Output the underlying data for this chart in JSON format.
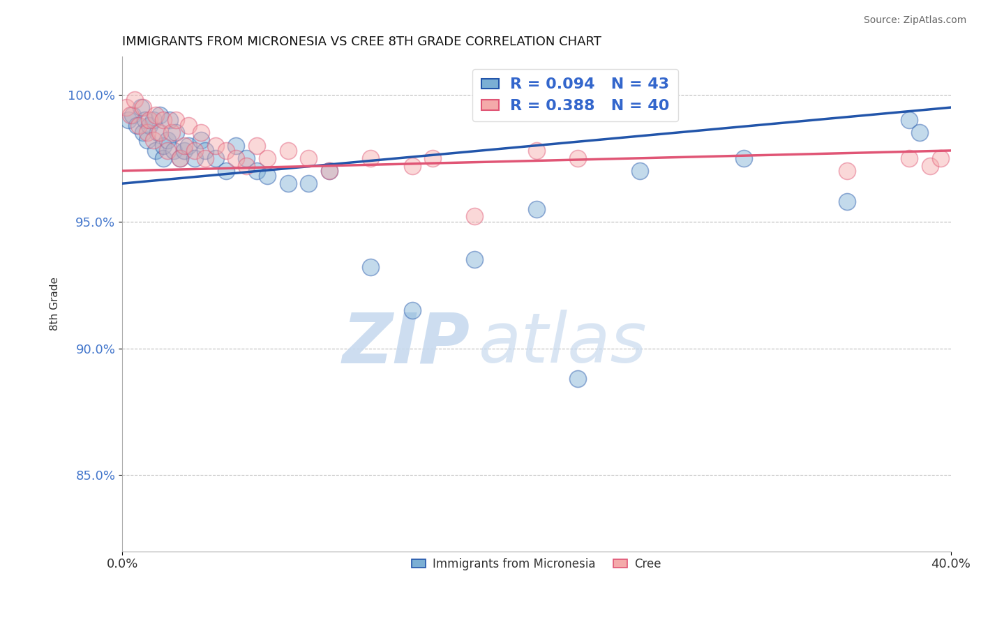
{
  "title": "IMMIGRANTS FROM MICRONESIA VS CREE 8TH GRADE CORRELATION CHART",
  "source": "Source: ZipAtlas.com",
  "ylabel": "8th Grade",
  "xlim": [
    0.0,
    40.0
  ],
  "ylim": [
    82.0,
    101.5
  ],
  "yticks": [
    85.0,
    90.0,
    95.0,
    100.0
  ],
  "ytick_labels": [
    "85.0%",
    "90.0%",
    "95.0%",
    "100.0%"
  ],
  "xticks": [
    0.0,
    40.0
  ],
  "xtick_labels": [
    "0.0%",
    "40.0%"
  ],
  "blue_R": 0.094,
  "blue_N": 43,
  "pink_R": 0.388,
  "pink_N": 40,
  "blue_color": "#7BAFD4",
  "pink_color": "#F4AAAA",
  "blue_line_color": "#2255AA",
  "pink_line_color": "#E05575",
  "legend_label_blue": "Immigrants from Micronesia",
  "legend_label_pink": "Cree",
  "blue_line_x0": 0.0,
  "blue_line_y0": 96.5,
  "blue_line_x1": 40.0,
  "blue_line_y1": 99.5,
  "pink_line_x0": 0.0,
  "pink_line_y0": 97.0,
  "pink_line_x1": 40.0,
  "pink_line_y1": 97.8,
  "blue_scatter_x": [
    0.3,
    0.5,
    0.7,
    0.9,
    1.0,
    1.1,
    1.2,
    1.3,
    1.5,
    1.6,
    1.7,
    1.8,
    2.0,
    2.0,
    2.2,
    2.3,
    2.5,
    2.6,
    2.8,
    3.0,
    3.2,
    3.5,
    3.8,
    4.0,
    4.5,
    5.0,
    5.5,
    6.0,
    6.5,
    7.0,
    8.0,
    9.0,
    10.0,
    12.0,
    14.0,
    17.0,
    20.0,
    22.0,
    25.0,
    30.0,
    35.0,
    38.0,
    38.5
  ],
  "blue_scatter_y": [
    99.0,
    99.2,
    98.8,
    99.5,
    98.5,
    99.0,
    98.2,
    98.8,
    99.0,
    97.8,
    98.5,
    99.2,
    97.5,
    98.0,
    98.2,
    99.0,
    97.8,
    98.5,
    97.5,
    97.8,
    98.0,
    97.5,
    98.2,
    97.8,
    97.5,
    97.0,
    98.0,
    97.5,
    97.0,
    96.8,
    96.5,
    96.5,
    97.0,
    93.2,
    91.5,
    93.5,
    95.5,
    88.8,
    97.0,
    97.5,
    95.8,
    99.0,
    98.5
  ],
  "pink_scatter_x": [
    0.2,
    0.4,
    0.6,
    0.8,
    1.0,
    1.2,
    1.3,
    1.5,
    1.6,
    1.8,
    2.0,
    2.2,
    2.4,
    2.6,
    2.8,
    3.0,
    3.2,
    3.5,
    3.8,
    4.0,
    4.5,
    5.0,
    5.5,
    6.0,
    6.5,
    7.0,
    8.0,
    9.0,
    10.0,
    12.0,
    14.0,
    15.0,
    17.0,
    20.0,
    22.0,
    25.0,
    35.0,
    38.0,
    39.0,
    39.5
  ],
  "pink_scatter_y": [
    99.5,
    99.2,
    99.8,
    98.8,
    99.5,
    98.5,
    99.0,
    98.2,
    99.2,
    98.5,
    99.0,
    97.8,
    98.5,
    99.0,
    97.5,
    98.0,
    98.8,
    97.8,
    98.5,
    97.5,
    98.0,
    97.8,
    97.5,
    97.2,
    98.0,
    97.5,
    97.8,
    97.5,
    97.0,
    97.5,
    97.2,
    97.5,
    95.2,
    97.8,
    97.5,
    100.5,
    97.0,
    97.5,
    97.2,
    97.5
  ],
  "watermark_zip": "ZIP",
  "watermark_atlas": "atlas",
  "background_color": "#FFFFFF",
  "grid_color": "#BBBBBB"
}
